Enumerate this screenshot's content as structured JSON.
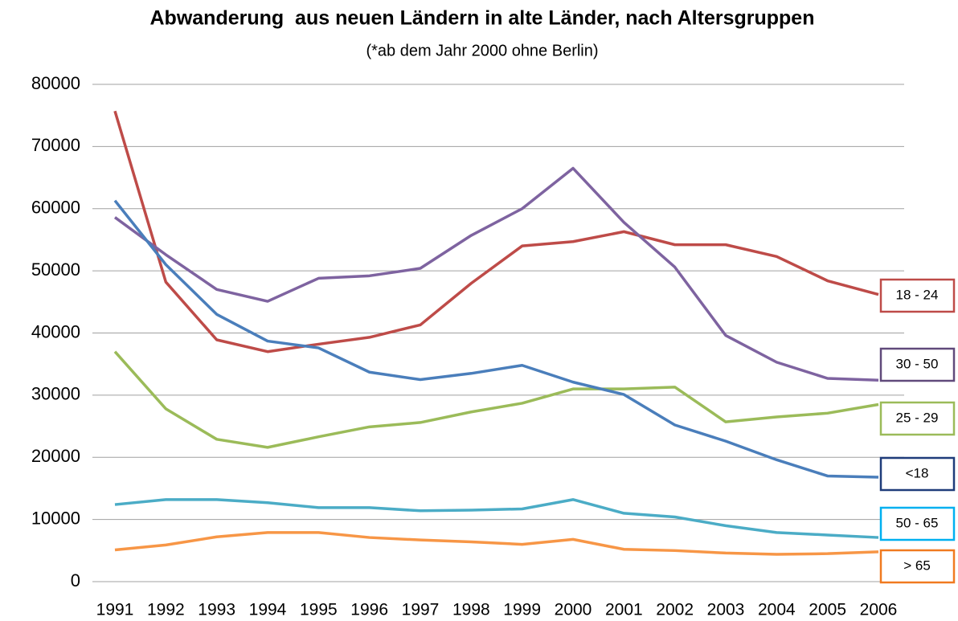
{
  "chart_data": {
    "type": "line",
    "title": "Abwanderung  aus neuen Ländern in alte Länder, nach Altersgruppen",
    "subtitle": "(*ab dem Jahr 2000 ohne Berlin)",
    "categories": [
      "1991",
      "1992",
      "1993",
      "1994",
      "1995",
      "1996",
      "1997",
      "1998",
      "1999",
      "2000",
      "2001",
      "2002",
      "2003",
      "2004",
      "2005",
      "2006"
    ],
    "series": [
      {
        "name": "18 - 24",
        "color": "#be4b48",
        "label_border": "#be4b48",
        "values": [
          75700,
          48200,
          38900,
          37000,
          38200,
          39300,
          41300,
          48000,
          54000,
          54700,
          56300,
          54200,
          54200,
          52300,
          48400,
          46200
        ]
      },
      {
        "name": "30 - 50",
        "color": "#7e63a0",
        "label_border": "#604a7b",
        "values": [
          58600,
          52600,
          47000,
          45100,
          48800,
          49200,
          50400,
          55700,
          60000,
          66500,
          57800,
          50600,
          39600,
          35300,
          32700,
          32400
        ]
      },
      {
        "name": "25 - 29",
        "color": "#9bbb59",
        "label_border": "#9bbb59",
        "values": [
          37000,
          27800,
          22900,
          21600,
          23300,
          24900,
          25600,
          27300,
          28700,
          31000,
          31000,
          31300,
          25700,
          26500,
          27100,
          28500
        ]
      },
      {
        "name": "<18",
        "color": "#4a7ebb",
        "label_border": "#1f3c7a",
        "values": [
          61300,
          51000,
          43000,
          38700,
          37600,
          33700,
          32500,
          33500,
          34800,
          32100,
          30100,
          25200,
          22600,
          19600,
          17000,
          16800
        ]
      },
      {
        "name": "50 - 65",
        "color": "#4bacc6",
        "label_border": "#00b0f0",
        "values": [
          12400,
          13200,
          13200,
          12700,
          11900,
          11900,
          11400,
          11500,
          11700,
          13200,
          11000,
          10400,
          9000,
          7900,
          7500,
          7100
        ]
      },
      {
        "name": "> 65",
        "color": "#f79646",
        "label_border": "#f07a20",
        "values": [
          5100,
          5900,
          7200,
          7900,
          7900,
          7100,
          6700,
          6400,
          6000,
          6800,
          5200,
          5000,
          4600,
          4400,
          4500,
          4800
        ]
      }
    ],
    "ylim": [
      0,
      80000
    ],
    "yticks": [
      0,
      10000,
      20000,
      30000,
      40000,
      50000,
      60000,
      70000,
      80000
    ],
    "grid": true
  }
}
